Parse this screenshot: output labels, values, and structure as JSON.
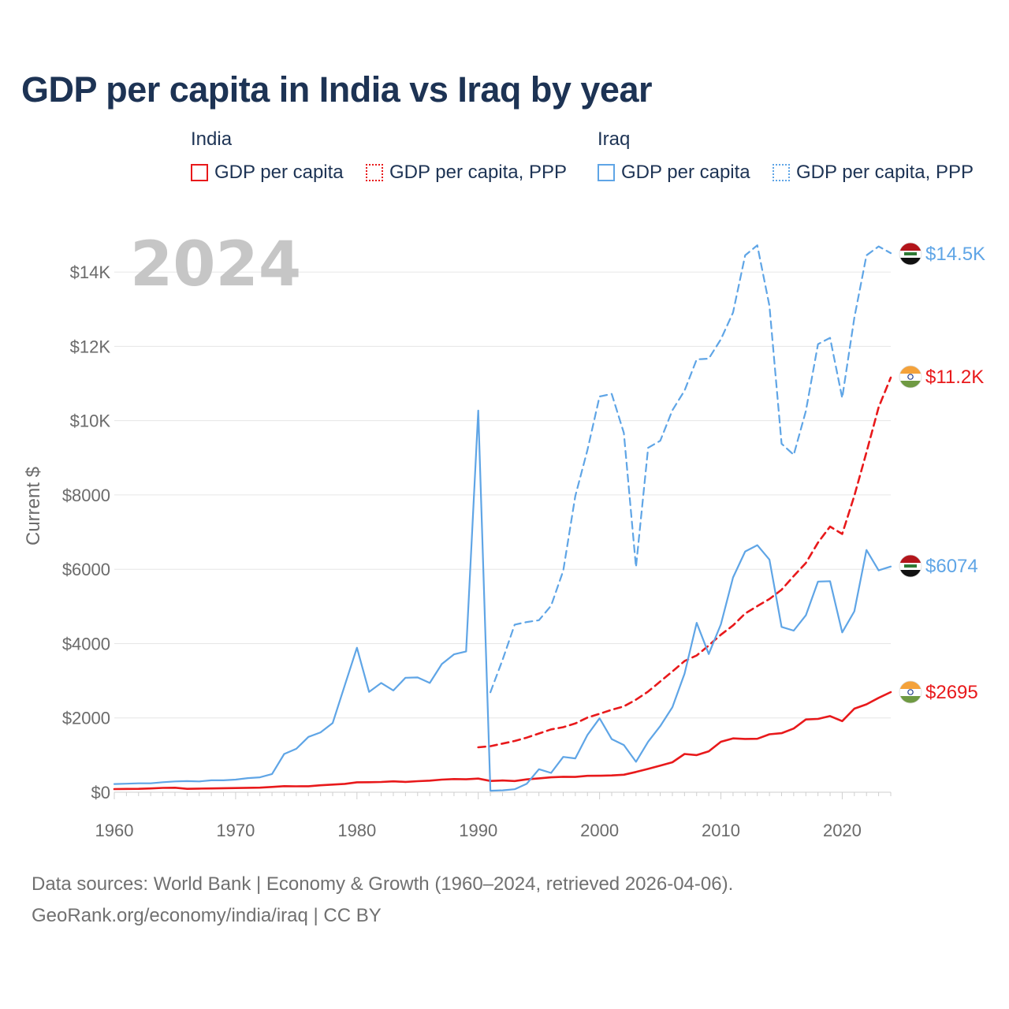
{
  "title": "GDP per capita in India vs Iraq by year",
  "legend": {
    "groups": [
      {
        "label": "India",
        "color": "#e8191b",
        "items": [
          {
            "label": "GDP per capita",
            "style": "solid"
          },
          {
            "label": "GDP per capita, PPP",
            "style": "dotted"
          }
        ]
      },
      {
        "label": "Iraq",
        "color": "#5fa5e6",
        "items": [
          {
            "label": "GDP per capita",
            "style": "solid"
          },
          {
            "label": "GDP per capita, PPP",
            "style": "dotted"
          }
        ]
      }
    ]
  },
  "year_stamp": "2024",
  "footer": {
    "line1": "Data sources: World Bank | Economy & Growth (1960–2024, retrieved 2026-04-06).",
    "line2": "GeoRank.org/economy/india/iraq | CC BY"
  },
  "chart_data": {
    "type": "line",
    "ylabel": "Current $",
    "xlim": [
      1960,
      2024
    ],
    "ylim": [
      0,
      15000
    ],
    "grid": true,
    "x_ticks": [
      1960,
      1970,
      1980,
      1990,
      2000,
      2010,
      2020
    ],
    "x_tick_labels": [
      "1960",
      "1970",
      "1980",
      "1990",
      "2000",
      "2010",
      "2020"
    ],
    "y_ticks": [
      0,
      2000,
      4000,
      6000,
      8000,
      10000,
      12000,
      14000
    ],
    "y_tick_labels": [
      "$0",
      "$2000",
      "$4000",
      "$6000",
      "$8000",
      "$10K",
      "$12K",
      "$14K"
    ],
    "series": [
      {
        "name": "India GDP per capita",
        "country": "India",
        "style": "solid",
        "color": "#e8191b",
        "start_year": 1960,
        "end_label": "$2695",
        "flag": "india",
        "values": [
          84,
          89,
          92,
          102,
          117,
          121,
          92,
          98,
          101,
          108,
          113,
          119,
          124,
          143,
          164,
          159,
          161,
          186,
          205,
          224,
          267,
          270,
          276,
          293,
          277,
          297,
          311,
          340,
          355,
          347,
          368,
          303,
          317,
          301,
          346,
          374,
          400,
          415,
          412,
          441,
          443,
          452,
          471,
          546,
          627,
          714,
          806,
          1028,
          999,
          1102,
          1358,
          1450,
          1434,
          1438,
          1560,
          1590,
          1714,
          1958,
          1974,
          2050,
          1913,
          2250,
          2366,
          2540,
          2695
        ]
      },
      {
        "name": "India GDP per capita, PPP",
        "country": "India",
        "style": "dashed",
        "color": "#e8191b",
        "start_year": 1990,
        "end_label": "$11.2K",
        "flag": "india",
        "values": [
          1210,
          1240,
          1310,
          1380,
          1470,
          1580,
          1690,
          1750,
          1850,
          2010,
          2110,
          2220,
          2310,
          2490,
          2710,
          2980,
          3250,
          3530,
          3680,
          3950,
          4240,
          4490,
          4810,
          5010,
          5200,
          5450,
          5820,
          6170,
          6720,
          7150,
          6950,
          7980,
          9150,
          10360,
          11160
        ]
      },
      {
        "name": "Iraq GDP per capita",
        "country": "Iraq",
        "style": "solid",
        "color": "#5fa5e6",
        "start_year": 1960,
        "end_label": "$6074",
        "flag": "iraq",
        "values": [
          220,
          230,
          240,
          240,
          270,
          290,
          300,
          290,
          320,
          320,
          340,
          380,
          400,
          490,
          1030,
          1170,
          1490,
          1610,
          1860,
          2880,
          3890,
          2700,
          2940,
          2740,
          3080,
          3090,
          2940,
          3450,
          3710,
          3790,
          10270,
          40,
          50,
          80,
          230,
          620,
          520,
          950,
          910,
          1540,
          1990,
          1430,
          1270,
          820,
          1360,
          1780,
          2290,
          3190,
          4560,
          3720,
          4520,
          5780,
          6480,
          6650,
          6260,
          4450,
          4350,
          4760,
          5670,
          5680,
          4300,
          4870,
          6520,
          5970,
          6074
        ]
      },
      {
        "name": "Iraq GDP per capita, PPP",
        "country": "Iraq",
        "style": "dashed",
        "color": "#5fa5e6",
        "start_year": 1991,
        "end_label": "$14.5K",
        "flag": "iraq",
        "values": [
          2690,
          3560,
          4510,
          4580,
          4630,
          5020,
          5960,
          7970,
          9210,
          10650,
          10720,
          9670,
          6060,
          9270,
          9460,
          10280,
          10810,
          11650,
          11670,
          12190,
          12910,
          14450,
          14720,
          13090,
          9380,
          9080,
          10260,
          12060,
          12230,
          10610,
          12770,
          14450,
          14690,
          14510
        ]
      }
    ]
  }
}
